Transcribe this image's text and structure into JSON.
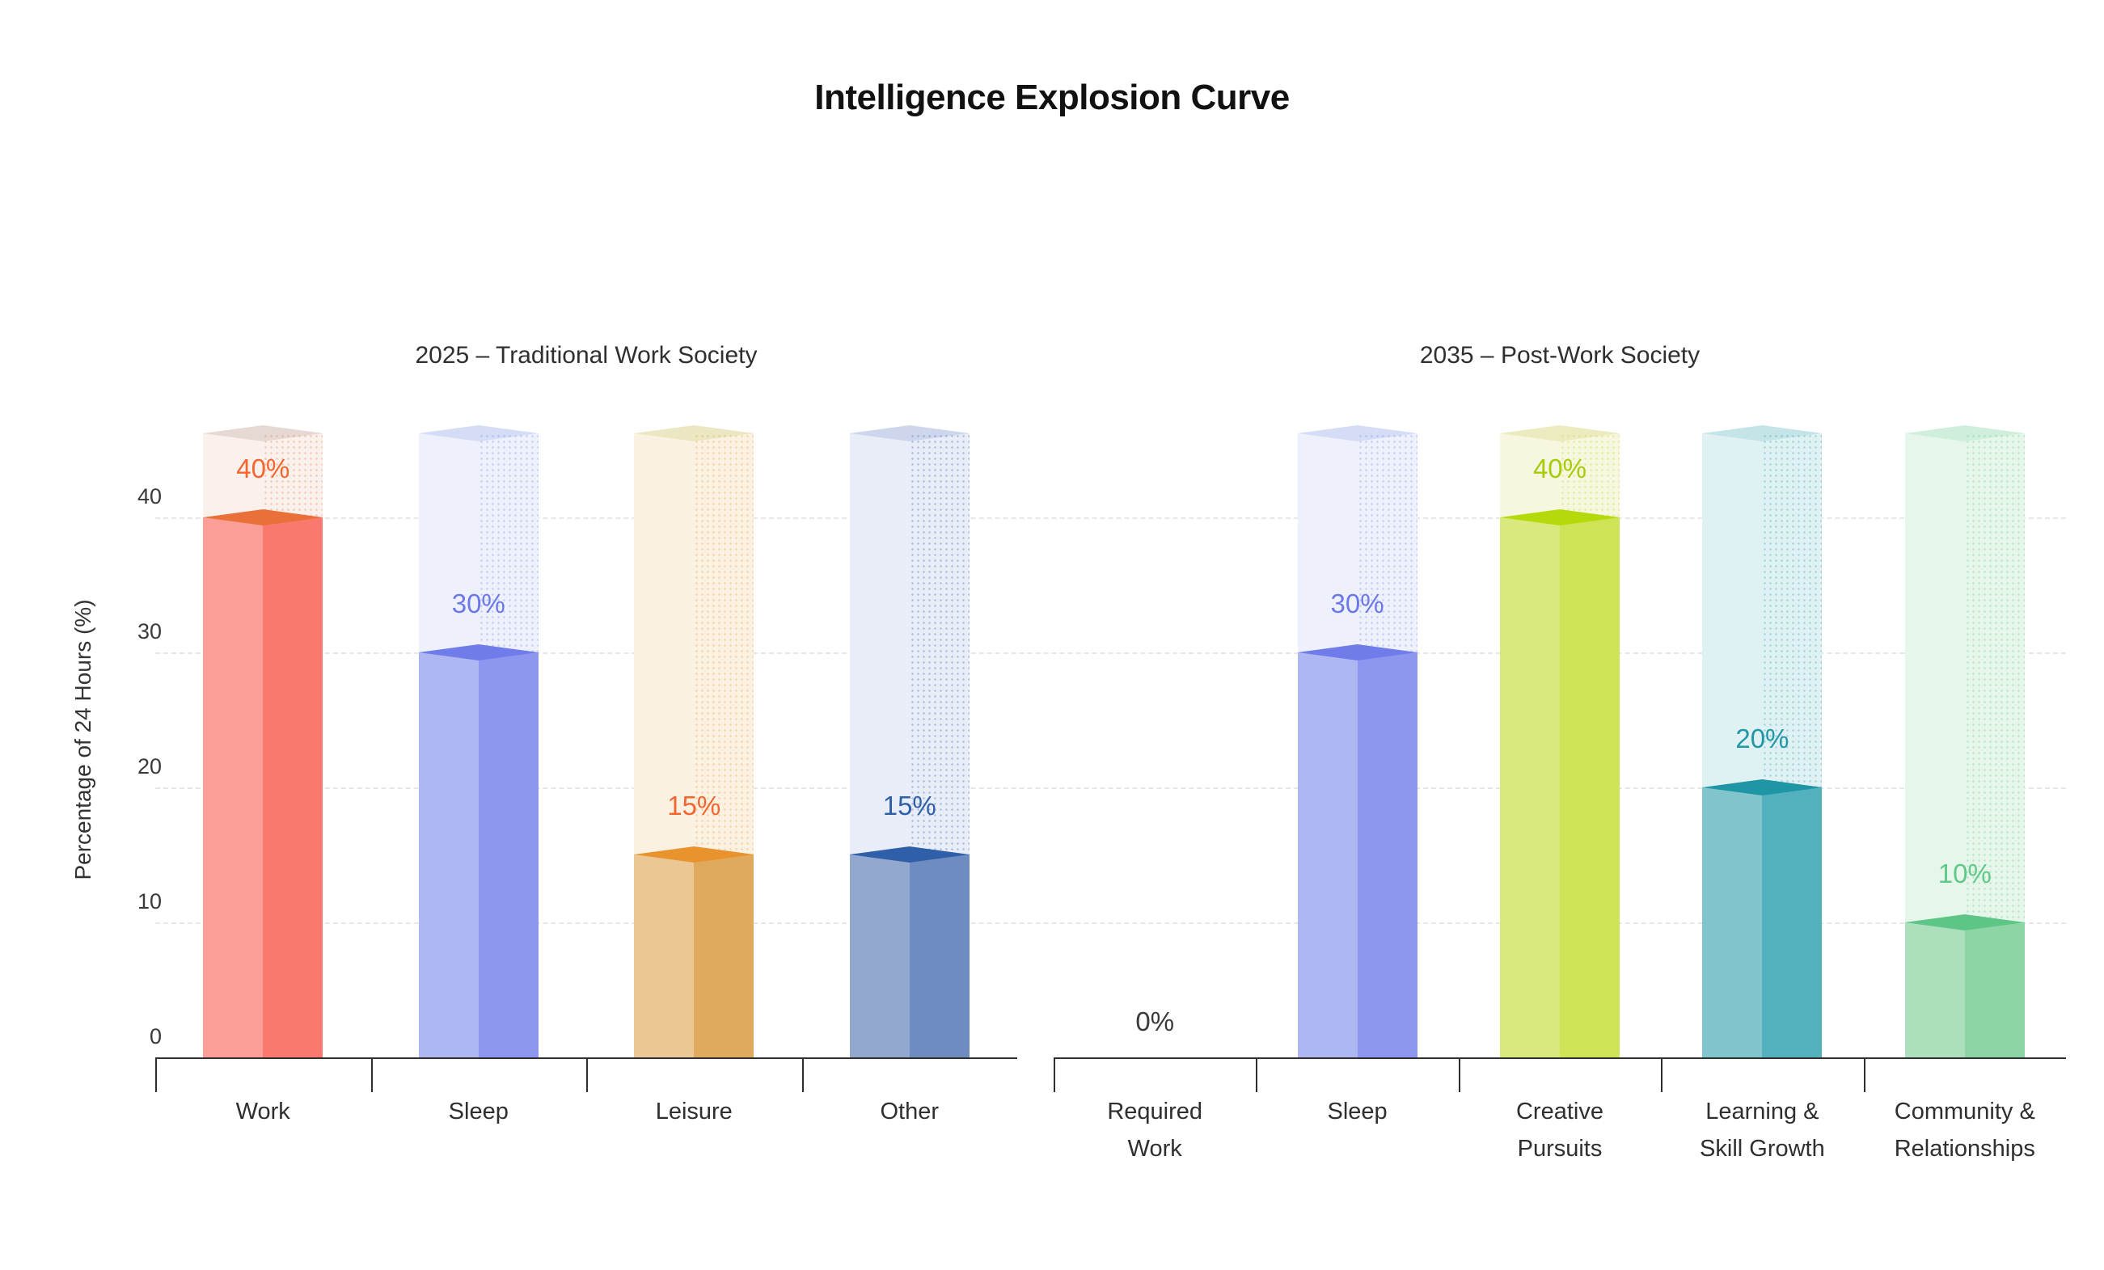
{
  "title": "Intelligence Explosion Curve",
  "y_axis": {
    "label": "Percentage of 24 Hours (%)",
    "tick_labels": [
      "0",
      "10",
      "20",
      "30",
      "40"
    ],
    "tick_values": [
      0,
      10,
      20,
      30,
      40
    ]
  },
  "colors": {
    "axis": "#2f2f2f",
    "grid": "#e7e7e7",
    "tick_text": "#3a3a3a",
    "title_text": "#111111",
    "zero_label": "#3a3a3a"
  },
  "chart_data": [
    {
      "type": "bar",
      "title": "2025 – Traditional Work Society",
      "categories": [
        "Work",
        "Sleep",
        "Leisure",
        "Other"
      ],
      "category_lines": [
        [
          "Work"
        ],
        [
          "Sleep"
        ],
        [
          "Leisure"
        ],
        [
          "Other"
        ]
      ],
      "values": [
        40,
        30,
        15,
        15
      ],
      "unit": "%",
      "data_labels": [
        "40%",
        "30%",
        "15%",
        "15%"
      ],
      "ylabel": "Percentage of 24 Hours (%)",
      "ylim": [
        0,
        46
      ],
      "grid": true,
      "legend": false,
      "bar_styles": [
        {
          "light": "#FB9E97",
          "dark": "#F9796E",
          "cap": "#E97038",
          "ghost": "#FAF1EC",
          "ghost_cap": "#E6D8D2",
          "label": "#F2672F"
        },
        {
          "light": "#AFB7F3",
          "dark": "#8E97EF",
          "cap": "#707CEA",
          "ghost": "#EEF1FC",
          "ghost_cap": "#D5DDF6",
          "label": "#6B79E8"
        },
        {
          "light": "#EBC795",
          "dark": "#DFAA5E",
          "cap": "#E8932D",
          "ghost": "#FBF1E3",
          "ghost_cap": "#EBE7C2",
          "label": "#F2672F"
        },
        {
          "light": "#92A8CF",
          "dark": "#6F8CC1",
          "cap": "#2F5FA8",
          "ghost": "#E9EDF7",
          "ghost_cap": "#CDD6EC",
          "label": "#2F5FA8"
        }
      ]
    },
    {
      "type": "bar",
      "title": "2035 – Post-Work Society",
      "categories": [
        "Required Work",
        "Sleep",
        "Creative Pursuits",
        "Learning & Skill Growth",
        "Community & Relationships"
      ],
      "category_lines": [
        [
          "Required",
          "Work"
        ],
        [
          "Sleep"
        ],
        [
          "Creative",
          "Pursuits"
        ],
        [
          "Learning &",
          "Skill Growth"
        ],
        [
          "Community &",
          "Relationships"
        ]
      ],
      "values": [
        0,
        30,
        40,
        20,
        10
      ],
      "unit": "%",
      "data_labels": [
        "0%",
        "30%",
        "40%",
        "20%",
        "10%"
      ],
      "ylabel": "Percentage of 24 Hours (%)",
      "ylim": [
        0,
        46
      ],
      "grid": true,
      "legend": false,
      "bar_styles": [
        {
          "light": null,
          "dark": null,
          "cap": null,
          "ghost": null,
          "ghost_cap": null,
          "label": "#3a3a3a"
        },
        {
          "light": "#AFB7F3",
          "dark": "#8E97EF",
          "cap": "#707CEA",
          "ghost": "#EEF1FC",
          "ghost_cap": "#D5DDF6",
          "label": "#6B79E8"
        },
        {
          "light": "#D9E97E",
          "dark": "#CEE355",
          "cap": "#B5DA0C",
          "ghost": "#F7F6DF",
          "ghost_cap": "#ECEBC0",
          "label": "#A6CC0B"
        },
        {
          "light": "#7FC5CB",
          "dark": "#53B1BD",
          "cap": "#1E96A5",
          "ghost": "#E0F1F3",
          "ghost_cap": "#C5E4E7",
          "label": "#1E97A6"
        },
        {
          "light": "#ACE0BC",
          "dark": "#8ED5A6",
          "cap": "#5DC686",
          "ghost": "#E6F6EB",
          "ghost_cap": "#D0EEDC",
          "label": "#60C888"
        }
      ]
    }
  ]
}
